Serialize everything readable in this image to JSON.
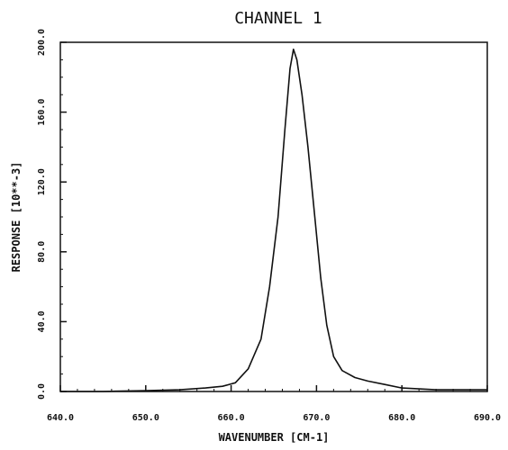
{
  "chart_data": {
    "type": "line",
    "title": "CHANNEL 1",
    "xlabel": "WAVENUMBER [CM-1]",
    "ylabel": "RESPONSE [10**-3]",
    "xlim": [
      640,
      690
    ],
    "ylim": [
      0,
      200
    ],
    "xticks": [
      640,
      650,
      660,
      670,
      680,
      690
    ],
    "yticks": [
      0,
      40,
      80,
      120,
      160,
      200
    ],
    "xtick_labels": [
      "640.0",
      "650.0",
      "660.0",
      "670.0",
      "680.0",
      "690.0"
    ],
    "ytick_labels": [
      "0.0",
      "40.0",
      "80.0",
      "120.0",
      "160.0",
      "200.0"
    ],
    "grid": false,
    "legend": "none",
    "series": [
      {
        "x": [
          640,
          645,
          650,
          654,
          657,
          659,
          660.5,
          662,
          663.5,
          664.5,
          665.5,
          666.3,
          666.9,
          667.3,
          667.7,
          668.3,
          669,
          669.8,
          670.5,
          671.2,
          672,
          673,
          674.5,
          676,
          678,
          680,
          684,
          690
        ],
        "y": [
          0,
          0,
          0.5,
          1,
          2,
          3,
          5,
          13,
          30,
          60,
          100,
          150,
          185,
          196,
          190,
          170,
          140,
          100,
          65,
          38,
          20,
          12,
          8,
          6,
          4,
          2,
          1,
          1
        ],
        "color": "#111111"
      }
    ]
  }
}
